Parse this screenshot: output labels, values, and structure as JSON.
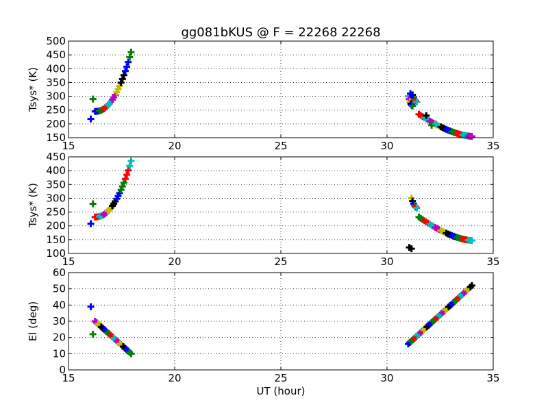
{
  "figure": {
    "title": "gg081bKUS @ F = 22268 22268",
    "xlabel": "UT (hour)"
  },
  "marker_colors": [
    "#0000ff",
    "#008000",
    "#ff0000",
    "#00bfbf",
    "#bf00bf",
    "#bfbf00",
    "#000000"
  ],
  "chart_data": [
    {
      "type": "scatter",
      "panel": "top",
      "ylabel": "Tsys* (K)",
      "xlim": [
        15,
        35
      ],
      "ylim": [
        150,
        500
      ],
      "xticks": [
        15,
        20,
        25,
        30,
        35
      ],
      "yticks": [
        150,
        200,
        250,
        300,
        350,
        400,
        450,
        500
      ],
      "grid": true,
      "segments": [
        {
          "x_start": 16.25,
          "x_end": 17.95,
          "y_start": 245,
          "y_end": 460,
          "points": 26,
          "color_runs": 3
        },
        {
          "x_start": 31.0,
          "x_end": 31.2,
          "y_start": 300,
          "y_end": 265,
          "points": 6,
          "color_runs": 2
        },
        {
          "x_start": 31.2,
          "x_end": 31.4,
          "y_start": 305,
          "y_end": 280,
          "points": 5,
          "color_runs": 2
        },
        {
          "x_start": 31.5,
          "x_end": 34.0,
          "y_start": 235,
          "y_end": 155,
          "points": 30,
          "color_runs": 3
        }
      ],
      "points": [
        {
          "x": 16.05,
          "y": 218,
          "color": "#0000ff"
        },
        {
          "x": 16.15,
          "y": 290,
          "color": "#008000"
        },
        {
          "x": 31.1,
          "y": 310,
          "color": "#0000ff"
        },
        {
          "x": 31.85,
          "y": 230,
          "color": "#000000"
        },
        {
          "x": 32.1,
          "y": 195,
          "color": "#008000"
        },
        {
          "x": 32.3,
          "y": 200,
          "color": "#00bfbf"
        }
      ]
    },
    {
      "type": "scatter",
      "panel": "middle",
      "ylabel": "Tsys* (K)",
      "xlim": [
        15,
        35
      ],
      "ylim": [
        100,
        450
      ],
      "xticks": [
        15,
        20,
        25,
        30,
        35
      ],
      "yticks": [
        100,
        150,
        200,
        250,
        300,
        350,
        400,
        450
      ],
      "grid": true,
      "segments": [
        {
          "x_start": 16.25,
          "x_end": 17.95,
          "y_start": 232,
          "y_end": 435,
          "points": 26,
          "color_runs": 3
        },
        {
          "x_start": 31.15,
          "x_end": 31.4,
          "y_start": 300,
          "y_end": 265,
          "points": 6,
          "color_runs": 2
        },
        {
          "x_start": 31.5,
          "x_end": 34.0,
          "y_start": 232,
          "y_end": 147,
          "points": 30,
          "color_runs": 3
        }
      ],
      "points": [
        {
          "x": 16.05,
          "y": 208,
          "color": "#0000ff"
        },
        {
          "x": 16.15,
          "y": 280,
          "color": "#008000"
        },
        {
          "x": 31.05,
          "y": 122,
          "color": "#000000"
        },
        {
          "x": 31.15,
          "y": 117,
          "color": "#000000"
        }
      ]
    },
    {
      "type": "scatter",
      "panel": "bottom",
      "ylabel": "El (deg)",
      "xlim": [
        15,
        35
      ],
      "ylim": [
        0,
        60
      ],
      "xticks": [
        15,
        20,
        25,
        30,
        35
      ],
      "yticks": [
        0,
        10,
        20,
        30,
        40,
        50,
        60
      ],
      "grid": true,
      "segments": [
        {
          "x_start": 16.25,
          "x_end": 17.95,
          "y_start": 30,
          "y_end": 10,
          "points": 24,
          "color_runs": 3
        },
        {
          "x_start": 31.0,
          "x_end": 34.0,
          "y_start": 16,
          "y_end": 52,
          "points": 42,
          "color_runs": 6
        }
      ],
      "points": [
        {
          "x": 16.05,
          "y": 39,
          "color": "#0000ff"
        },
        {
          "x": 16.15,
          "y": 22,
          "color": "#008000"
        }
      ]
    }
  ]
}
